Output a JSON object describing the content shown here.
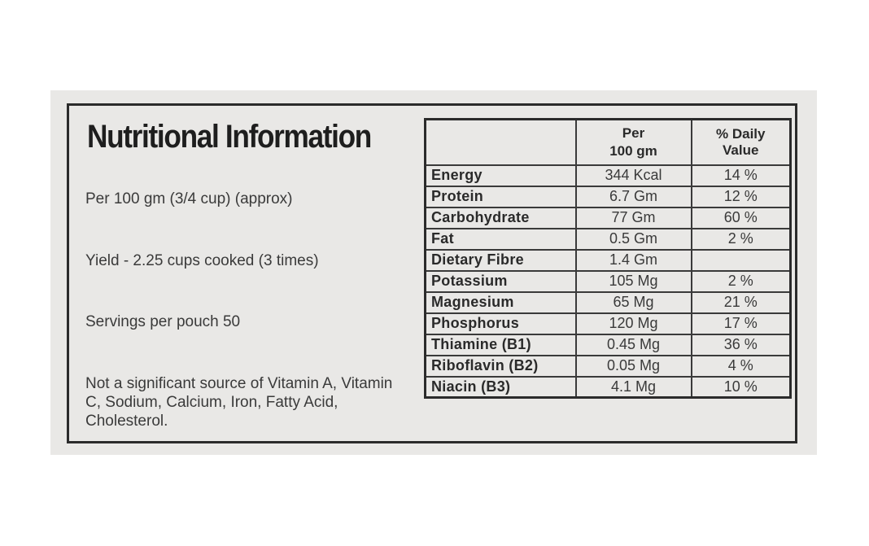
{
  "title": "Nutritional Information",
  "serving": "Per 100 gm (3/4 cup) (approx)",
  "yield": "Yield - 2.25 cups cooked (3 times)",
  "servings_per_pouch": "Servings per pouch 50",
  "note": "Not a significant source of Vitamin A, Vitamin C, Sodium, Calcium, Iron, Fatty Acid, Cholesterol.",
  "table": {
    "headers": {
      "name": "",
      "per": "Per\n100 gm",
      "dv": "% Daily Value"
    },
    "rows": [
      {
        "name": "Energy",
        "per": "344 Kcal",
        "dv": "14 %"
      },
      {
        "name": "Protein",
        "per": "6.7 Gm",
        "dv": "12 %"
      },
      {
        "name": "Carbohydrate",
        "per": "77 Gm",
        "dv": "60 %"
      },
      {
        "name": "Fat",
        "per": "0.5 Gm",
        "dv": "2 %"
      },
      {
        "name": "Dietary Fibre",
        "per": "1.4 Gm",
        "dv": ""
      },
      {
        "name": "Potassium",
        "per": "105 Mg",
        "dv": "2 %"
      },
      {
        "name": "Magnesium",
        "per": "65 Mg",
        "dv": "21 %"
      },
      {
        "name": "Phosphorus",
        "per": "120 Mg",
        "dv": "17 %"
      },
      {
        "name": "Thiamine (B1)",
        "per": "0.45 Mg",
        "dv": "36 %"
      },
      {
        "name": "Riboflavin (B2)",
        "per": "0.05 Mg",
        "dv": "4 %"
      },
      {
        "name": "Niacin (B3)",
        "per": "4.1 Mg",
        "dv": "10 %"
      }
    ]
  }
}
